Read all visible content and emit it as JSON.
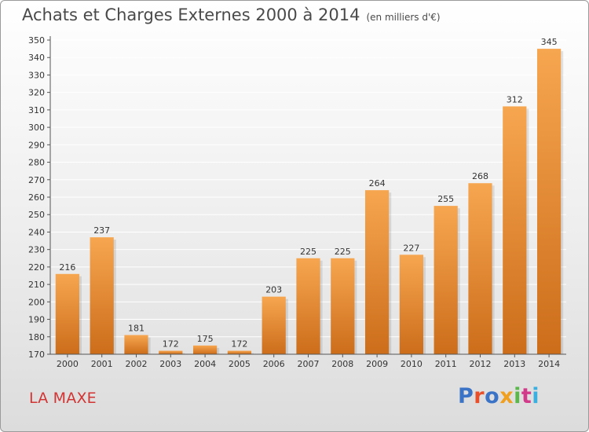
{
  "header": {
    "title": "Achats et Charges Externes 2000 à 2014",
    "unit": "(en milliers d'€)"
  },
  "commune": "LA MAXE",
  "logo": {
    "text": "Proxiti",
    "colors": [
      "#3b73c6",
      "#e8502b",
      "#3b73c6",
      "#f0a020",
      "#5ab84a",
      "#d23a8a",
      "#3bb0e0"
    ]
  },
  "colors": {
    "bar_light": "#f7a650",
    "bar_dark": "#cc6d1a",
    "axis": "#555555",
    "grid": "#ffffff"
  },
  "chart_data": {
    "type": "bar",
    "categories": [
      "2000",
      "2001",
      "2002",
      "2003",
      "2004",
      "2005",
      "2006",
      "2007",
      "2008",
      "2009",
      "2010",
      "2011",
      "2012",
      "2013",
      "2014"
    ],
    "values": [
      216,
      237,
      181,
      172,
      175,
      172,
      203,
      225,
      225,
      264,
      227,
      255,
      268,
      312,
      345
    ],
    "ylim": [
      170,
      350
    ],
    "yticks": [
      170,
      180,
      190,
      200,
      210,
      220,
      230,
      240,
      250,
      260,
      270,
      280,
      290,
      300,
      310,
      320,
      330,
      340,
      350
    ],
    "grid": true
  }
}
